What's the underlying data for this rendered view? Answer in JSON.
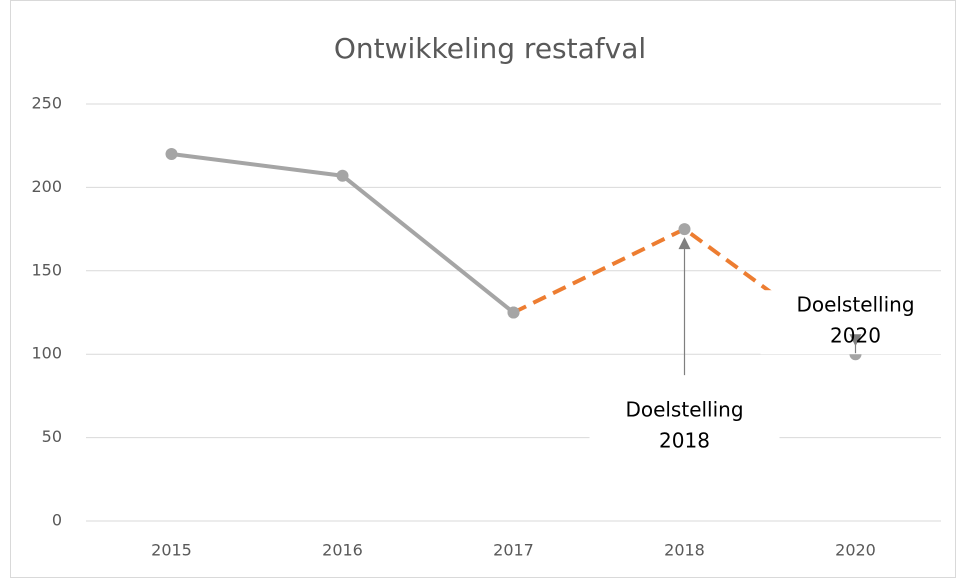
{
  "chart_data": {
    "type": "line",
    "title": "Ontwikkeling restafval",
    "categories": [
      "2015",
      "2016",
      "2017",
      "2018",
      "2020"
    ],
    "series": [
      {
        "color": "#a5a5a5",
        "dash": false,
        "marker_color": "#a5a5a5",
        "values": [
          220,
          207,
          125,
          null,
          null
        ]
      },
      {
        "color": "#ed7d31",
        "dash": true,
        "marker_color": "#a5a5a5",
        "values": [
          null,
          null,
          125,
          175,
          100
        ]
      }
    ],
    "ylim": [
      0,
      250
    ],
    "yticks": [
      0,
      50,
      100,
      150,
      200,
      250
    ],
    "grid": true,
    "annotations": [
      {
        "text": [
          "Doelstelling",
          "2018"
        ],
        "target": "2018",
        "position": "below"
      },
      {
        "text": [
          "Doelstelling",
          "2020"
        ],
        "target": "2020",
        "position": "above"
      }
    ]
  }
}
